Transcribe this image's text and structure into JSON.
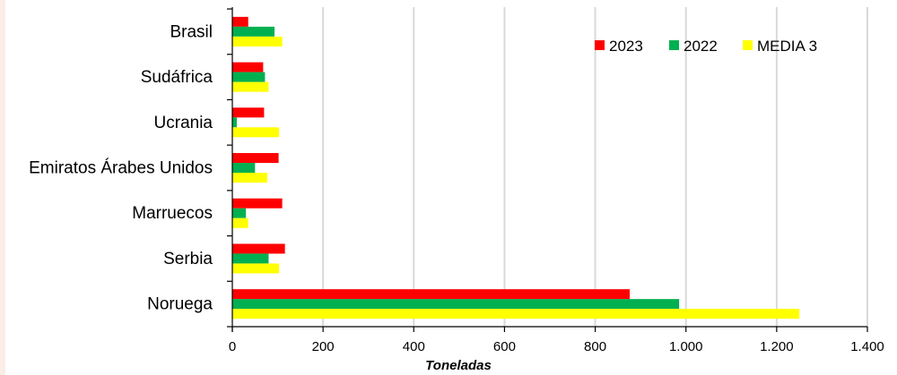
{
  "chart_data": {
    "type": "bar",
    "orientation": "horizontal",
    "categories": [
      "Brasil",
      "Sudáfrica",
      "Ucrania",
      "Emiratos Árabes Unidos",
      "Marruecos",
      "Serbia",
      "Noruega"
    ],
    "series": [
      {
        "name": "2023",
        "color": "#ff0000",
        "values": [
          35,
          68,
          70,
          102,
          110,
          116,
          876
        ]
      },
      {
        "name": "2022",
        "color": "#00b050",
        "values": [
          93,
          72,
          10,
          50,
          30,
          80,
          985
        ]
      },
      {
        "name": "MEDIA 3",
        "color": "#ffff00",
        "values": [
          110,
          80,
          103,
          77,
          35,
          103,
          1250
        ]
      }
    ],
    "xlim": [
      0,
      1400
    ],
    "xticks": [
      0,
      200,
      400,
      600,
      800,
      1000,
      1200,
      1400
    ],
    "xtick_labels": [
      "0",
      "200",
      "400",
      "600",
      "800",
      "1.000",
      "1.200",
      "1.400"
    ],
    "xlabel": "Toneladas",
    "grid": "vertical",
    "legend_position": "top-right"
  }
}
